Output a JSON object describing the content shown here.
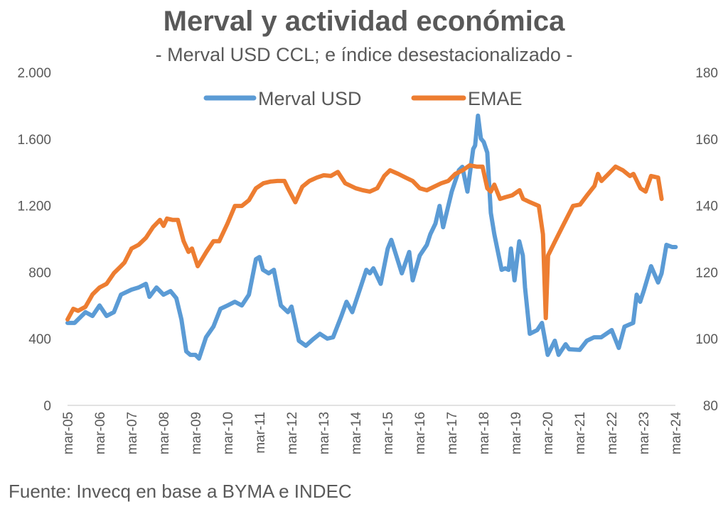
{
  "chart_data": {
    "type": "line",
    "title": "Merval y actividad económica",
    "subtitle": "- Merval USD CCL; e índice desestacionalizado -",
    "source": "Fuente: Invecq en base a BYMA e INDEC",
    "xlabel": "",
    "ylabel_left": "",
    "ylabel_right": "",
    "grid": false,
    "legend": {
      "position": "top-center",
      "entries": [
        "Merval USD",
        "EMAE"
      ]
    },
    "x_ticks": [
      "mar-05",
      "mar-06",
      "mar-07",
      "mar-08",
      "mar-09",
      "mar-10",
      "mar-11",
      "mar-12",
      "mar-13",
      "mar-14",
      "mar-15",
      "mar-16",
      "mar-17",
      "mar-18",
      "mar-19",
      "mar-20",
      "mar-21",
      "mar-22",
      "mar-23",
      "mar-24"
    ],
    "x_range": [
      2005.17,
      2024.17
    ],
    "y_left": {
      "range": [
        0,
        2000
      ],
      "ticks": [
        0,
        400,
        800,
        1200,
        1600,
        2000
      ],
      "tick_labels": [
        "0",
        "400",
        "800",
        "1.200",
        "1.600",
        "2.000"
      ]
    },
    "y_right": {
      "range": [
        80,
        180
      ],
      "ticks": [
        80,
        100,
        120,
        140,
        160,
        180
      ],
      "tick_labels": [
        "80",
        "100",
        "120",
        "140",
        "160",
        "180"
      ]
    },
    "series": [
      {
        "name": "Merval USD",
        "axis": "left",
        "color": "#5B9BD5",
        "x": [
          2005.17,
          2005.39,
          2005.5,
          2005.73,
          2005.95,
          2006.17,
          2006.39,
          2006.62,
          2006.84,
          2007.17,
          2007.39,
          2007.62,
          2007.73,
          2007.95,
          2008.17,
          2008.39,
          2008.57,
          2008.73,
          2008.88,
          2009.01,
          2009.17,
          2009.28,
          2009.5,
          2009.73,
          2009.95,
          2010.17,
          2010.4,
          2010.62,
          2010.84,
          2011.06,
          2011.17,
          2011.28,
          2011.46,
          2011.62,
          2011.84,
          2012.06,
          2012.17,
          2012.4,
          2012.62,
          2012.84,
          2013.06,
          2013.29,
          2013.47,
          2013.73,
          2013.89,
          2014.07,
          2014.29,
          2014.51,
          2014.62,
          2014.73,
          2014.96,
          2015.18,
          2015.29,
          2015.62,
          2015.85,
          2015.96,
          2016.18,
          2016.4,
          2016.51,
          2016.67,
          2016.8,
          2016.91,
          2017.18,
          2017.4,
          2017.51,
          2017.67,
          2017.85,
          2017.91,
          2018.0,
          2018.09,
          2018.18,
          2018.29,
          2018.4,
          2018.51,
          2018.74,
          2018.85,
          2018.96,
          2019.03,
          2019.14,
          2019.29,
          2019.4,
          2019.47,
          2019.62,
          2019.85,
          2020.0,
          2020.18,
          2020.29,
          2020.4,
          2020.52,
          2020.74,
          2020.85,
          2021.18,
          2021.4,
          2021.63,
          2021.85,
          2022.18,
          2022.4,
          2022.58,
          2022.85,
          2022.96,
          2023.07,
          2023.18,
          2023.41,
          2023.63,
          2023.74,
          2023.89,
          2024.07,
          2024.18
        ],
        "values": [
          495,
          495,
          516,
          560,
          537,
          600,
          537,
          560,
          665,
          695,
          708,
          730,
          652,
          708,
          665,
          686,
          644,
          516,
          324,
          303,
          303,
          281,
          409,
          473,
          580,
          600,
          622,
          600,
          665,
          878,
          891,
          814,
          793,
          814,
          600,
          560,
          593,
          388,
          358,
          396,
          430,
          401,
          409,
          537,
          622,
          560,
          686,
          814,
          793,
          823,
          730,
          942,
          994,
          793,
          921,
          751,
          900,
          964,
          1028,
          1092,
          1198,
          1070,
          1284,
          1412,
          1433,
          1284,
          1540,
          1561,
          1740,
          1603,
          1582,
          1518,
          1156,
          1028,
          814,
          823,
          814,
          942,
          751,
          985,
          900,
          708,
          430,
          452,
          495,
          303,
          345,
          388,
          303,
          367,
          337,
          333,
          388,
          409,
          409,
          452,
          345,
          473,
          495,
          665,
          622,
          686,
          836,
          738,
          793,
          964,
          951,
          951
        ]
      },
      {
        "name": "EMAE",
        "axis": "right",
        "color": "#ED7D31",
        "x": [
          2005.17,
          2005.35,
          2005.5,
          2005.73,
          2005.95,
          2006.17,
          2006.39,
          2006.62,
          2006.84,
          2006.95,
          2007.17,
          2007.39,
          2007.62,
          2007.84,
          2008.06,
          2008.17,
          2008.28,
          2008.46,
          2008.62,
          2008.8,
          2008.95,
          2009.06,
          2009.24,
          2009.51,
          2009.73,
          2009.91,
          2010.17,
          2010.4,
          2010.62,
          2010.84,
          2011.06,
          2011.29,
          2011.51,
          2011.73,
          2011.95,
          2012.06,
          2012.29,
          2012.51,
          2012.73,
          2012.96,
          2013.18,
          2013.4,
          2013.62,
          2013.85,
          2014.18,
          2014.4,
          2014.62,
          2014.85,
          2015.07,
          2015.25,
          2015.51,
          2015.74,
          2015.96,
          2016.18,
          2016.4,
          2016.63,
          2016.85,
          2017.07,
          2017.29,
          2017.52,
          2017.74,
          2017.96,
          2018.14,
          2018.29,
          2018.4,
          2018.51,
          2018.69,
          2018.85,
          2019.07,
          2019.3,
          2019.41,
          2019.63,
          2019.9,
          2020.03,
          2020.12,
          2020.19,
          2020.41,
          2020.63,
          2020.86,
          2020.97,
          2021.19,
          2021.41,
          2021.64,
          2021.75,
          2021.86,
          2022.08,
          2022.3,
          2022.53,
          2022.75,
          2022.86,
          2023.08,
          2023.24,
          2023.41,
          2023.63,
          2023.74
        ],
        "values": [
          105.8,
          109.0,
          108.4,
          109.6,
          113.3,
          115.4,
          116.5,
          119.7,
          121.8,
          122.9,
          127.1,
          128.2,
          130.3,
          133.5,
          135.7,
          133.9,
          136.1,
          135.7,
          135.7,
          129.3,
          126.1,
          127.1,
          121.8,
          126.1,
          129.3,
          129.3,
          134.6,
          139.9,
          139.9,
          141.6,
          145.2,
          146.7,
          147.2,
          147.4,
          147.4,
          145.2,
          141.0,
          145.7,
          147.4,
          148.4,
          149.1,
          148.9,
          150.1,
          146.7,
          145.2,
          144.6,
          144.2,
          145.2,
          148.9,
          150.6,
          149.5,
          148.4,
          147.4,
          145.2,
          144.6,
          145.7,
          146.7,
          147.4,
          149.5,
          150.6,
          152.1,
          151.7,
          151.7,
          145.2,
          144.2,
          146.3,
          142.0,
          142.5,
          143.1,
          144.6,
          142.0,
          141.0,
          139.9,
          131.4,
          106.2,
          125.0,
          129.3,
          133.5,
          137.8,
          139.9,
          140.3,
          143.1,
          145.9,
          149.5,
          147.4,
          149.5,
          151.7,
          150.6,
          148.9,
          149.5,
          145.2,
          144.2,
          148.9,
          148.4,
          142.0
        ]
      }
    ]
  }
}
